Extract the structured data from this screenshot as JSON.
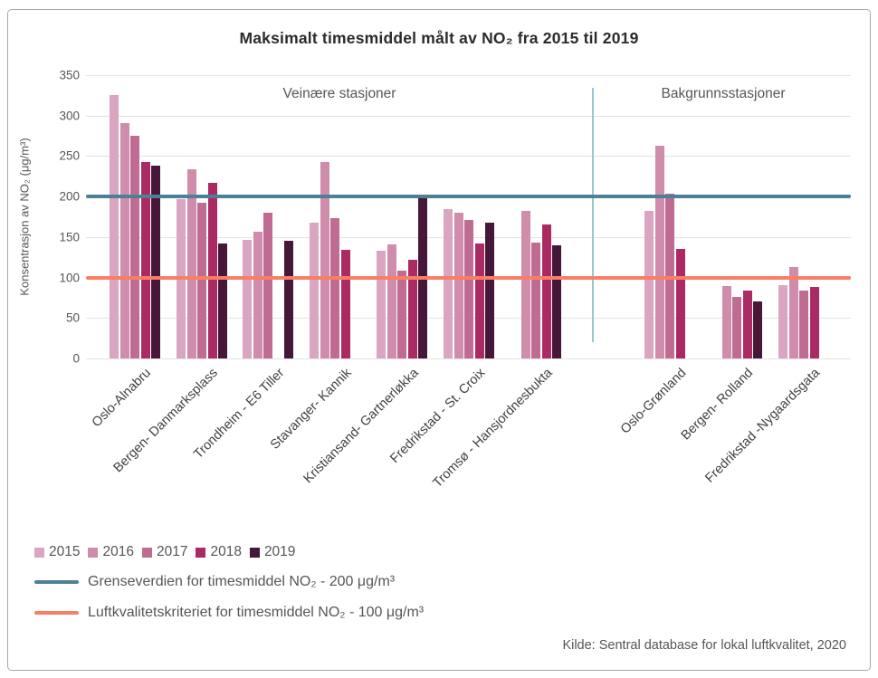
{
  "title": "Maksimalt timesmiddel målt av NO₂ fra 2015 til 2019",
  "y_axis": {
    "label": "Konsentrasjon av NO₂ (μg/m³)",
    "ticks": [
      350,
      300,
      250,
      200,
      150,
      100,
      50,
      0
    ]
  },
  "sections": [
    {
      "label": "Veinære stasjoner"
    },
    {
      "label": "Bakgrunnsstasjoner"
    }
  ],
  "legend": {
    "years": [
      {
        "label": "2015",
        "color": "#d9a5c0"
      },
      {
        "label": "2016",
        "color": "#cf8cab"
      },
      {
        "label": "2017",
        "color": "#c06b92"
      },
      {
        "label": "2018",
        "color": "#ac2a63"
      },
      {
        "label": "2019",
        "color": "#461739"
      }
    ]
  },
  "ref_lines": [
    {
      "label": "Grenseverdien for timesmiddel NO₂ - 200 μg/m³",
      "value": 200,
      "color": "#4d8096"
    },
    {
      "label": "Luftkvalitetskriteriet for timesmiddel NO₂ - 100 μg/m³",
      "value": 100,
      "color": "#f87f66"
    }
  ],
  "source": "Kilde: Sentral database for lokal luftkvalitet, 2020",
  "chart_data": {
    "type": "bar",
    "title": "Maksimalt timesmiddel målt av NO₂ fra 2015 til 2019",
    "ylabel": "Konsentrasjon av NO₂ (μg/m³)",
    "ylim": [
      0,
      350
    ],
    "grid": true,
    "legend_position": "bottom-left",
    "years": [
      "2015",
      "2016",
      "2017",
      "2018",
      "2019"
    ],
    "series_colors": [
      "#d9a5c0",
      "#cf8cab",
      "#c06b92",
      "#ac2a63",
      "#461739"
    ],
    "reference_lines": [
      {
        "value": 200,
        "color": "#4d8096",
        "label": "Grenseverdien for timesmiddel NO₂ - 200 μg/m³"
      },
      {
        "value": 100,
        "color": "#f87f66",
        "label": "Luftkvalitetskriteriet for timesmiddel NO₂ - 100 μg/m³"
      }
    ],
    "stations": [
      {
        "name": "Oslo-Alnabru",
        "section": "Veinære stasjoner",
        "values": [
          325,
          291,
          275,
          243,
          238
        ]
      },
      {
        "name": "Bergen- Danmarksplass",
        "section": "Veinære stasjoner",
        "values": [
          197,
          234,
          192,
          217,
          142
        ]
      },
      {
        "name": "Trondheim - E6 Tiller",
        "section": "Veinære stasjoner",
        "values": [
          147,
          157,
          180,
          null,
          145
        ]
      },
      {
        "name": "Stavanger- Kannik",
        "section": "Veinære stasjoner",
        "values": [
          168,
          243,
          173,
          134,
          null
        ]
      },
      {
        "name": "Kristiansand- Gartnerløkka",
        "section": "Veinære stasjoner",
        "values": [
          133,
          141,
          109,
          122,
          200
        ]
      },
      {
        "name": "Fredrikstad - St. Croix",
        "section": "Veinære stasjoner",
        "values": [
          184,
          180,
          171,
          142,
          168
        ]
      },
      {
        "name": "Tromsø - Hansjordnesbukta",
        "section": "Veinære stasjoner",
        "values": [
          null,
          182,
          143,
          166,
          140
        ]
      },
      {
        "name": "Oslo-Grønland",
        "section": "Bakgrunnsstasjoner",
        "values": [
          182,
          263,
          204,
          135,
          null
        ]
      },
      {
        "name": "Bergen- Rolland",
        "section": "Bakgrunnsstasjoner",
        "values": [
          null,
          89,
          76,
          84,
          70
        ]
      },
      {
        "name": "Fredrikstad -Nygaardsgata",
        "section": "Bakgrunnsstasjoner",
        "values": [
          91,
          113,
          84,
          88,
          null
        ]
      }
    ]
  }
}
